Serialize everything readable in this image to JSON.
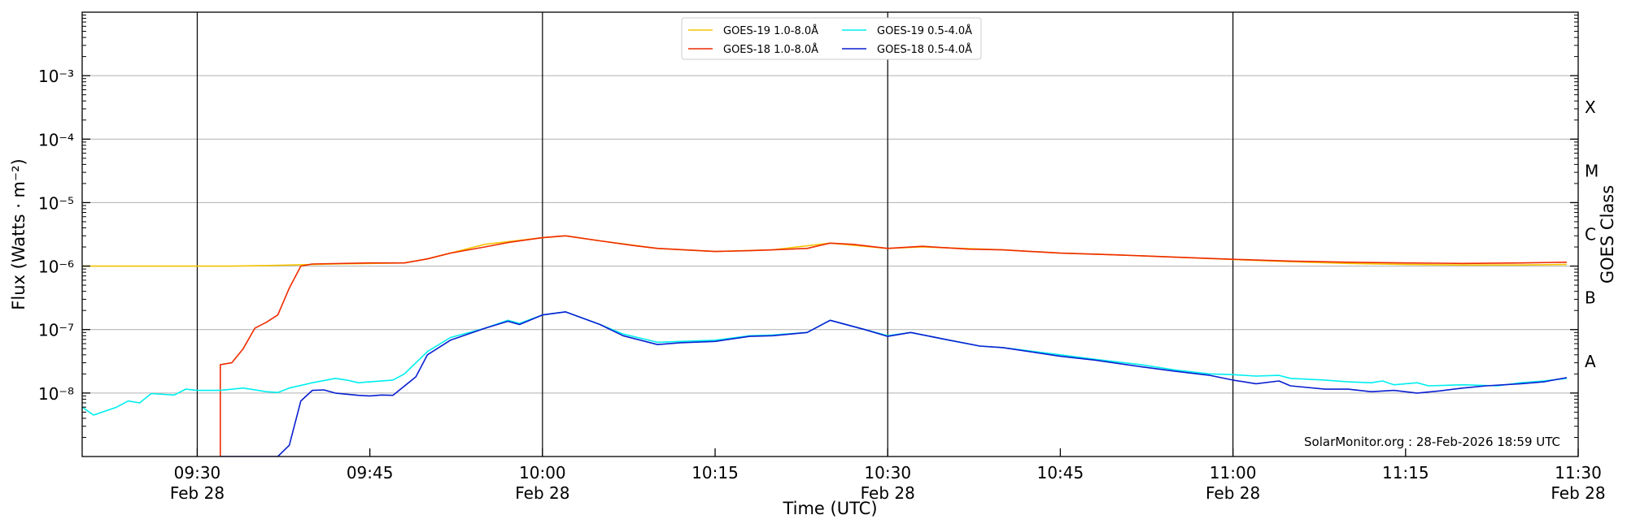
{
  "chart_data": {
    "type": "line",
    "xlabel": "Time (UTC)",
    "ylabel": "Flux (Watts · m⁻²)",
    "y2label": "GOES Class",
    "yscale": "log",
    "ylim": [
      1e-09,
      0.01
    ],
    "xlim": [
      "09:20",
      "11:30"
    ],
    "grid": "horizontal",
    "legend_position": "top-center",
    "attribution": "SolarMonitor.org : 28-Feb-2026 18:59 UTC",
    "x_ticks": [
      {
        "time": "09:30",
        "line1": "09:30",
        "line2": "Feb 28",
        "vline": true
      },
      {
        "time": "09:45",
        "line1": "09:45",
        "line2": "",
        "vline": false
      },
      {
        "time": "10:00",
        "line1": "10:00",
        "line2": "Feb 28",
        "vline": true
      },
      {
        "time": "10:15",
        "line1": "10:15",
        "line2": "",
        "vline": false
      },
      {
        "time": "10:30",
        "line1": "10:30",
        "line2": "Feb 28",
        "vline": true
      },
      {
        "time": "10:45",
        "line1": "10:45",
        "line2": "",
        "vline": false
      },
      {
        "time": "11:00",
        "line1": "11:00",
        "line2": "Feb 28",
        "vline": true
      },
      {
        "time": "11:15",
        "line1": "11:15",
        "line2": "",
        "vline": false
      },
      {
        "time": "11:30",
        "line1": "11:30",
        "line2": "Feb 28",
        "vline": false
      }
    ],
    "y_ticks": [
      {
        "value": 1e-08,
        "label": "10⁻⁸"
      },
      {
        "value": 1e-07,
        "label": "10⁻⁷"
      },
      {
        "value": 1e-06,
        "label": "10⁻⁶"
      },
      {
        "value": 1e-05,
        "label": "10⁻⁵"
      },
      {
        "value": 0.0001,
        "label": "10⁻⁴"
      },
      {
        "value": 0.001,
        "label": "10⁻³"
      }
    ],
    "goes_classes": [
      {
        "label": "A",
        "value": 3.16e-08
      },
      {
        "label": "B",
        "value": 3.16e-07
      },
      {
        "label": "C",
        "value": 3.16e-06
      },
      {
        "label": "M",
        "value": 3.16e-05
      },
      {
        "label": "X",
        "value": 0.000316
      }
    ],
    "series": [
      {
        "name": "GOES-19 1.0-8.0Å",
        "color": "#f5c400",
        "points": [
          [
            "09:20",
            1e-06
          ],
          [
            "09:25",
            1e-06
          ],
          [
            "09:30",
            1e-06
          ],
          [
            "09:33",
            1e-06
          ],
          [
            "09:36",
            1.02e-06
          ],
          [
            "09:39",
            1.05e-06
          ],
          [
            "09:42",
            1.08e-06
          ],
          [
            "09:45",
            1.1e-06
          ],
          [
            "09:48",
            1.12e-06
          ],
          [
            "09:50",
            1.3e-06
          ],
          [
            "09:55",
            2.2e-06
          ],
          [
            "10:00",
            2.8e-06
          ],
          [
            "10:02",
            3e-06
          ],
          [
            "10:05",
            2.5e-06
          ],
          [
            "10:10",
            1.9e-06
          ],
          [
            "10:15",
            1.7e-06
          ],
          [
            "10:20",
            1.8e-06
          ],
          [
            "10:25",
            2.3e-06
          ],
          [
            "10:30",
            1.9e-06
          ],
          [
            "10:33",
            2e-06
          ],
          [
            "10:40",
            1.8e-06
          ],
          [
            "10:45",
            1.6e-06
          ],
          [
            "10:50",
            1.5e-06
          ],
          [
            "10:55",
            1.38e-06
          ],
          [
            "11:00",
            1.27e-06
          ],
          [
            "11:05",
            1.17e-06
          ],
          [
            "11:10",
            1.1e-06
          ],
          [
            "11:15",
            1.06e-06
          ],
          [
            "11:20",
            1.04e-06
          ],
          [
            "11:25",
            1.04e-06
          ],
          [
            "11:29",
            1.06e-06
          ]
        ]
      },
      {
        "name": "GOES-18 1.0-8.0Å",
        "color": "#ee2b00",
        "points": [
          [
            "09:32",
            1e-09
          ],
          [
            "09:32",
            2.8e-08
          ],
          [
            "09:33",
            3e-08
          ],
          [
            "09:34",
            5e-08
          ],
          [
            "09:35",
            1.05e-07
          ],
          [
            "09:36",
            1.3e-07
          ],
          [
            "09:37",
            1.7e-07
          ],
          [
            "09:38",
            4.5e-07
          ],
          [
            "09:39",
            1e-06
          ],
          [
            "09:40",
            1.08e-06
          ],
          [
            "09:45",
            1.12e-06
          ],
          [
            "09:48",
            1.12e-06
          ],
          [
            "09:50",
            1.3e-06
          ],
          [
            "09:52",
            1.6e-06
          ],
          [
            "09:55",
            2e-06
          ],
          [
            "09:57",
            2.35e-06
          ],
          [
            "10:00",
            2.8e-06
          ],
          [
            "10:02",
            3e-06
          ],
          [
            "10:05",
            2.5e-06
          ],
          [
            "10:08",
            2.1e-06
          ],
          [
            "10:10",
            1.9e-06
          ],
          [
            "10:15",
            1.7e-06
          ],
          [
            "10:18",
            1.75e-06
          ],
          [
            "10:20",
            1.8e-06
          ],
          [
            "10:23",
            1.9e-06
          ],
          [
            "10:25",
            2.3e-06
          ],
          [
            "10:27",
            2.2e-06
          ],
          [
            "10:30",
            1.9e-06
          ],
          [
            "10:33",
            2.05e-06
          ],
          [
            "10:37",
            1.85e-06
          ],
          [
            "10:40",
            1.8e-06
          ],
          [
            "10:45",
            1.6e-06
          ],
          [
            "10:50",
            1.5e-06
          ],
          [
            "10:55",
            1.38e-06
          ],
          [
            "11:00",
            1.28e-06
          ],
          [
            "11:05",
            1.2e-06
          ],
          [
            "11:10",
            1.15e-06
          ],
          [
            "11:15",
            1.12e-06
          ],
          [
            "11:20",
            1.1e-06
          ],
          [
            "11:25",
            1.12e-06
          ],
          [
            "11:29",
            1.15e-06
          ]
        ]
      },
      {
        "name": "GOES-19 0.5-4.0Å",
        "color": "#00eeee",
        "points": [
          [
            "09:20",
            6e-09
          ],
          [
            "09:21",
            4.5e-09
          ],
          [
            "09:23",
            6e-09
          ],
          [
            "09:24",
            7.5e-09
          ],
          [
            "09:25",
            7e-09
          ],
          [
            "09:26",
            9.8e-09
          ],
          [
            "09:28",
            9.3e-09
          ],
          [
            "09:29",
            1.15e-08
          ],
          [
            "09:30",
            1.1e-08
          ],
          [
            "09:32",
            1.1e-08
          ],
          [
            "09:34",
            1.2e-08
          ],
          [
            "09:36",
            1.05e-08
          ],
          [
            "09:37",
            1.02e-08
          ],
          [
            "09:38",
            1.2e-08
          ],
          [
            "09:40",
            1.45e-08
          ],
          [
            "09:42",
            1.7e-08
          ],
          [
            "09:43",
            1.6e-08
          ],
          [
            "09:44",
            1.45e-08
          ],
          [
            "09:45",
            1.5e-08
          ],
          [
            "09:47",
            1.6e-08
          ],
          [
            "09:48",
            2e-08
          ],
          [
            "09:50",
            4.5e-08
          ],
          [
            "09:52",
            7.5e-08
          ],
          [
            "09:55",
            1.05e-07
          ],
          [
            "09:57",
            1.4e-07
          ],
          [
            "09:58",
            1.25e-07
          ],
          [
            "10:00",
            1.7e-07
          ],
          [
            "10:02",
            1.9e-07
          ],
          [
            "10:05",
            1.2e-07
          ],
          [
            "10:07",
            8.5e-08
          ],
          [
            "10:10",
            6.3e-08
          ],
          [
            "10:12",
            6.5e-08
          ],
          [
            "10:15",
            6.8e-08
          ],
          [
            "10:18",
            8e-08
          ],
          [
            "10:20",
            8.2e-08
          ],
          [
            "10:23",
            9e-08
          ],
          [
            "10:25",
            1.4e-07
          ],
          [
            "10:28",
            1e-07
          ],
          [
            "10:30",
            8e-08
          ],
          [
            "10:32",
            9e-08
          ],
          [
            "10:35",
            7e-08
          ],
          [
            "10:38",
            5.5e-08
          ],
          [
            "10:40",
            5.2e-08
          ],
          [
            "10:45",
            4e-08
          ],
          [
            "10:48",
            3.4e-08
          ],
          [
            "10:52",
            2.8e-08
          ],
          [
            "10:55",
            2.3e-08
          ],
          [
            "10:58",
            2e-08
          ],
          [
            "11:00",
            1.95e-08
          ],
          [
            "11:02",
            1.85e-08
          ],
          [
            "11:04",
            1.9e-08
          ],
          [
            "11:05",
            1.7e-08
          ],
          [
            "11:08",
            1.6e-08
          ],
          [
            "11:10",
            1.5e-08
          ],
          [
            "11:12",
            1.45e-08
          ],
          [
            "11:13",
            1.55e-08
          ],
          [
            "11:14",
            1.35e-08
          ],
          [
            "11:16",
            1.45e-08
          ],
          [
            "11:17",
            1.3e-08
          ],
          [
            "11:20",
            1.35e-08
          ],
          [
            "11:23",
            1.3e-08
          ],
          [
            "11:25",
            1.45e-08
          ],
          [
            "11:27",
            1.55e-08
          ],
          [
            "11:29",
            1.7e-08
          ]
        ]
      },
      {
        "name": "GOES-18 0.5-4.0Å",
        "color": "#0a1fd0",
        "points": [
          [
            "09:32",
            1e-09
          ],
          [
            "09:37",
            1e-09
          ],
          [
            "09:38",
            1.5e-09
          ],
          [
            "09:39",
            7.5e-09
          ],
          [
            "09:40",
            1.1e-08
          ],
          [
            "09:41",
            1.12e-08
          ],
          [
            "09:42",
            1e-08
          ],
          [
            "09:44",
            9.2e-09
          ],
          [
            "09:45",
            9e-09
          ],
          [
            "09:46",
            9.3e-09
          ],
          [
            "09:47",
            9.2e-09
          ],
          [
            "09:49",
            1.8e-08
          ],
          [
            "09:50",
            4e-08
          ],
          [
            "09:52",
            6.8e-08
          ],
          [
            "09:55",
            1.05e-07
          ],
          [
            "09:57",
            1.35e-07
          ],
          [
            "09:58",
            1.2e-07
          ],
          [
            "10:00",
            1.7e-07
          ],
          [
            "10:02",
            1.9e-07
          ],
          [
            "10:05",
            1.2e-07
          ],
          [
            "10:07",
            8e-08
          ],
          [
            "10:10",
            5.8e-08
          ],
          [
            "10:12",
            6.2e-08
          ],
          [
            "10:15",
            6.5e-08
          ],
          [
            "10:18",
            7.8e-08
          ],
          [
            "10:20",
            8e-08
          ],
          [
            "10:23",
            9e-08
          ],
          [
            "10:25",
            1.4e-07
          ],
          [
            "10:28",
            1e-07
          ],
          [
            "10:30",
            7.8e-08
          ],
          [
            "10:32",
            9e-08
          ],
          [
            "10:35",
            7e-08
          ],
          [
            "10:38",
            5.5e-08
          ],
          [
            "10:40",
            5.2e-08
          ],
          [
            "10:45",
            3.8e-08
          ],
          [
            "10:48",
            3.3e-08
          ],
          [
            "10:52",
            2.6e-08
          ],
          [
            "10:55",
            2.2e-08
          ],
          [
            "10:58",
            1.9e-08
          ],
          [
            "11:00",
            1.6e-08
          ],
          [
            "11:02",
            1.4e-08
          ],
          [
            "11:04",
            1.55e-08
          ],
          [
            "11:05",
            1.3e-08
          ],
          [
            "11:08",
            1.15e-08
          ],
          [
            "11:10",
            1.15e-08
          ],
          [
            "11:12",
            1.05e-08
          ],
          [
            "11:14",
            1.1e-08
          ],
          [
            "11:16",
            1e-08
          ],
          [
            "11:18",
            1.08e-08
          ],
          [
            "11:20",
            1.2e-08
          ],
          [
            "11:22",
            1.3e-08
          ],
          [
            "11:25",
            1.4e-08
          ],
          [
            "11:27",
            1.5e-08
          ],
          [
            "11:29",
            1.75e-08
          ]
        ]
      }
    ]
  }
}
